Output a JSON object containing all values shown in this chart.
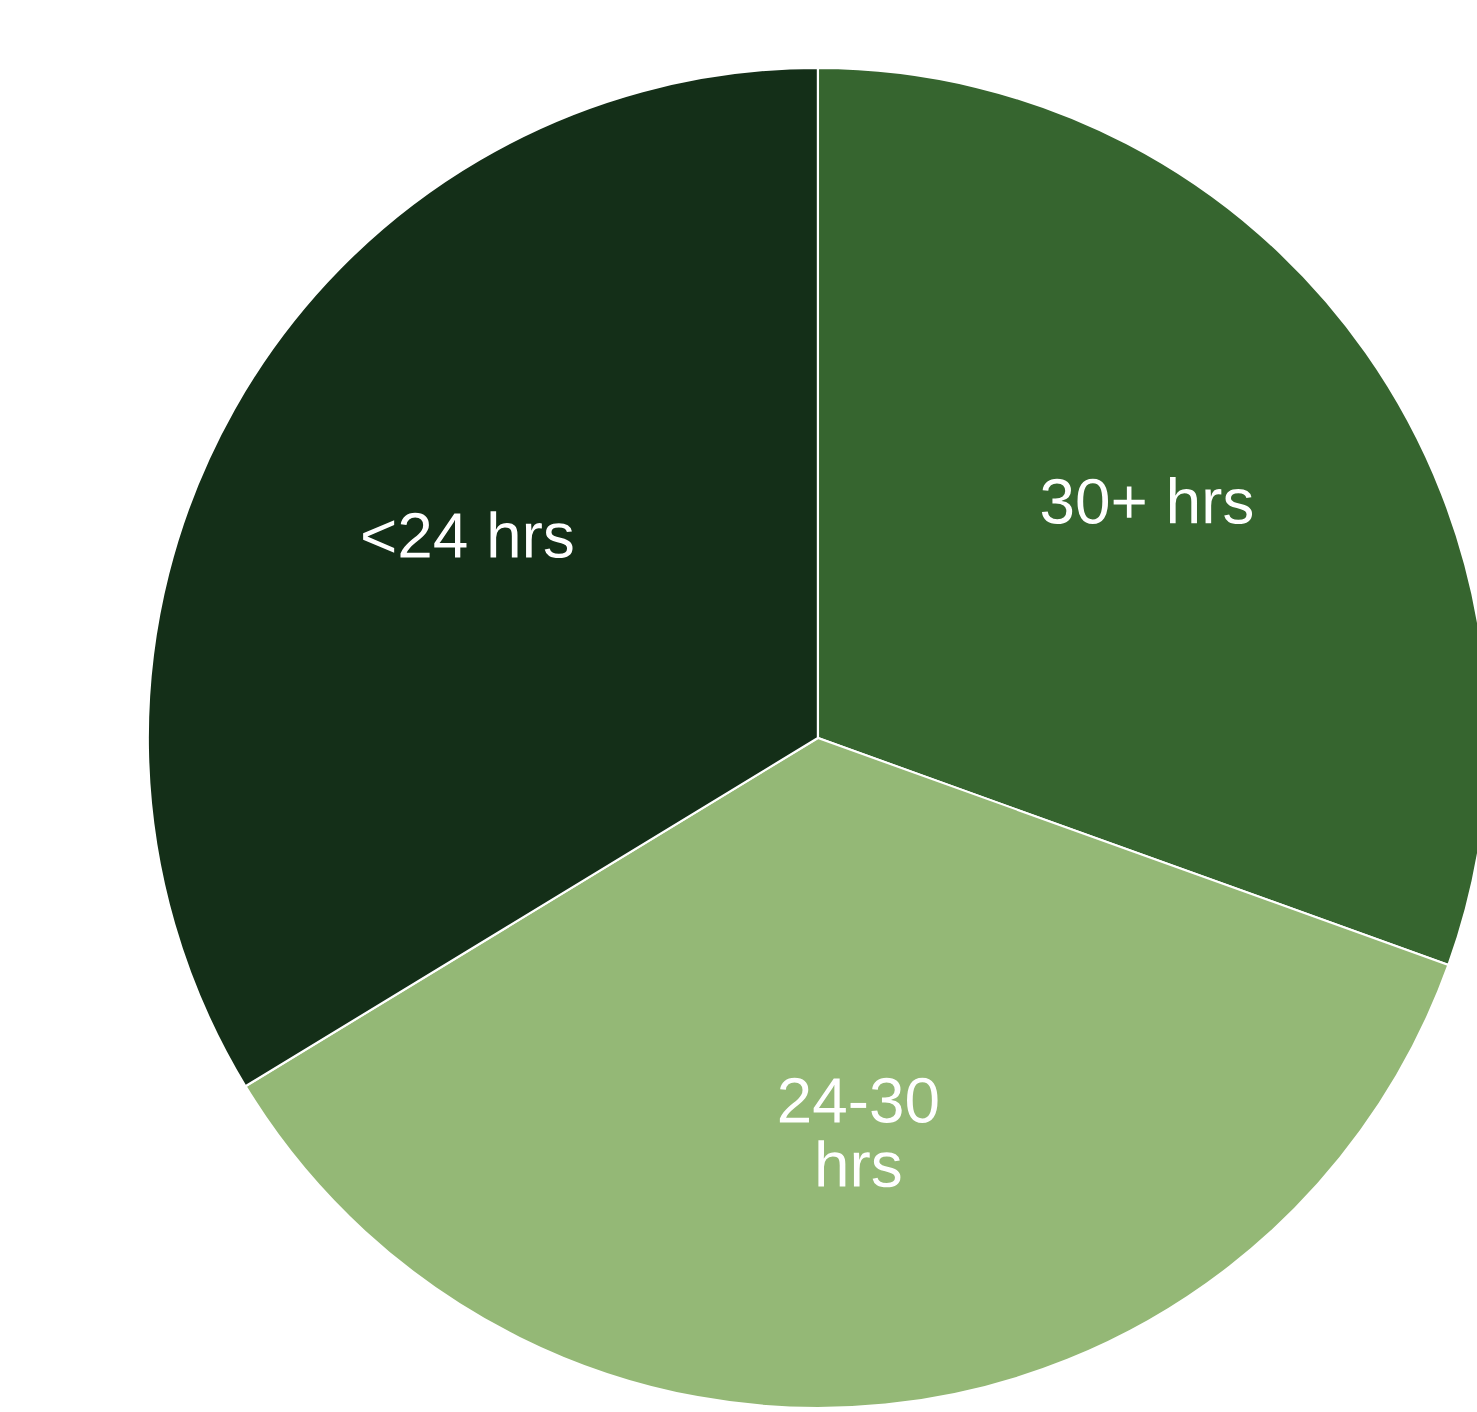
{
  "chart_data": {
    "type": "pie",
    "categories": [
      "30+ hrs",
      "24-30\nhrs",
      "<24 hrs"
    ],
    "values": [
      30.5,
      35.8,
      33.7
    ],
    "colors": [
      "#36652f",
      "#94b876",
      "#142f18"
    ]
  }
}
